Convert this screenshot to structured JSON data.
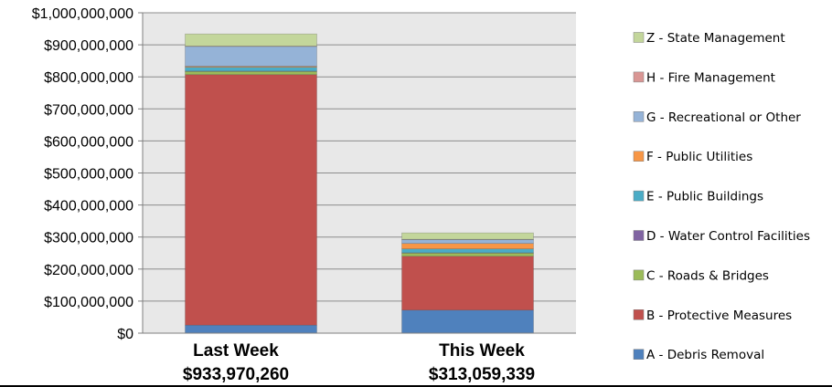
{
  "chart_data": {
    "type": "bar",
    "stacked": true,
    "categories": [
      "Last Week",
      "This Week"
    ],
    "category_totals": [
      "$933,970,260",
      "$313,059,339"
    ],
    "yticks": [
      "$0",
      "$100,000,000",
      "$200,000,000",
      "$300,000,000",
      "$400,000,000",
      "$500,000,000",
      "$600,000,000",
      "$700,000,000",
      "$800,000,000",
      "$900,000,000",
      "$1,000,000,000"
    ],
    "ylim": [
      0,
      1000000000
    ],
    "grid": true,
    "legend_position": "right",
    "plot_background": "#e8e8e8",
    "series": [
      {
        "name": "A - Debris Removal",
        "color": "#4f81bd",
        "values": [
          25000000,
          72000000
        ]
      },
      {
        "name": "B - Protective Measures",
        "color": "#c0504d",
        "values": [
          782000000,
          168000000
        ]
      },
      {
        "name": "C - Roads & Bridges",
        "color": "#9bbb59",
        "values": [
          10000000,
          10000000
        ]
      },
      {
        "name": "D - Water Control Facilities",
        "color": "#8064a2",
        "values": [
          1000000,
          1000000
        ]
      },
      {
        "name": "E - Public Buildings",
        "color": "#4bacc6",
        "values": [
          12000000,
          12000000
        ]
      },
      {
        "name": "F - Public Utilities",
        "color": "#f79646",
        "values": [
          3000000,
          17000000
        ]
      },
      {
        "name": "G - Recreational or Other",
        "color": "#95b3d7",
        "values": [
          62000000,
          12000000
        ]
      },
      {
        "name": "H - Fire Management",
        "color": "#d99694",
        "values": [
          1000000,
          1000000
        ]
      },
      {
        "name": "Z - State Management",
        "color": "#c3d69b",
        "values": [
          38000000,
          20000000
        ]
      }
    ]
  }
}
